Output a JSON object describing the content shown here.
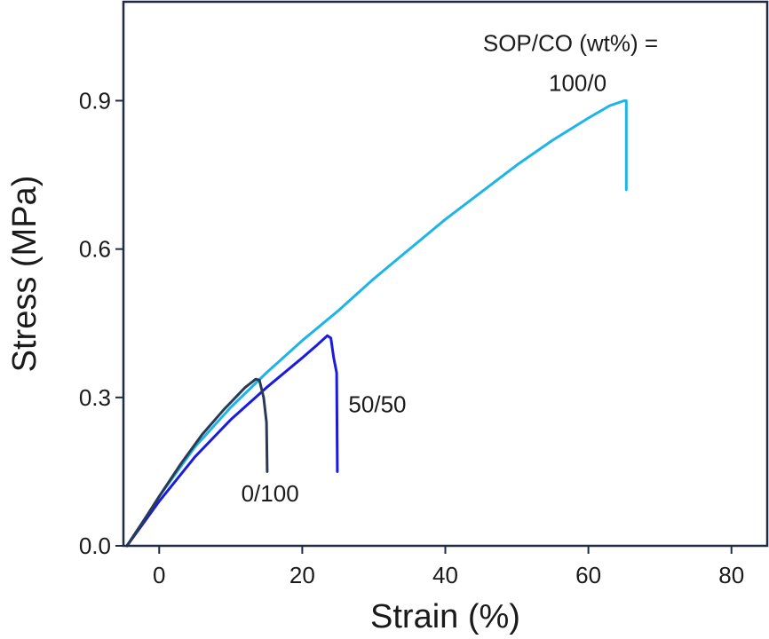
{
  "chart_data": {
    "type": "line",
    "title": "",
    "xlabel": "Strain (%)",
    "ylabel": "Stress (MPa)",
    "xlim": [
      -5,
      85
    ],
    "ylim": [
      0,
      1.1
    ],
    "x_ticks": [
      0,
      20,
      40,
      60,
      80
    ],
    "x_tick_labels": [
      "0",
      "20",
      "40",
      "60",
      "80"
    ],
    "y_ticks": [
      0,
      0.3,
      0.6,
      0.9
    ],
    "y_tick_labels": [
      "0.0",
      "0.3",
      "0.6",
      "0.9"
    ],
    "grid": false,
    "legend": "none",
    "annotations": [
      {
        "text": "SOP/CO (wt%) =",
        "x": 57.5,
        "y": 1.0
      },
      {
        "text": "100/0",
        "x": 58.5,
        "y": 0.92
      },
      {
        "text": "50/50",
        "x": 30.5,
        "y": 0.27
      },
      {
        "text": "0/100",
        "x": 15.5,
        "y": 0.09
      }
    ],
    "series": [
      {
        "label": "100/0",
        "color": "#1EB4E8",
        "x": [
          -4.5,
          -2,
          0,
          5,
          10,
          15,
          20,
          25,
          30,
          35,
          40,
          45,
          50,
          55,
          60,
          63,
          65,
          65.3,
          65.3
        ],
        "y": [
          0,
          0.055,
          0.1,
          0.2,
          0.28,
          0.35,
          0.415,
          0.475,
          0.54,
          0.6,
          0.66,
          0.715,
          0.77,
          0.82,
          0.865,
          0.89,
          0.9,
          0.9,
          0.72
        ]
      },
      {
        "label": "50/50",
        "color": "#1A1AE0",
        "x": [
          -4.5,
          -2,
          0,
          5,
          10,
          15,
          20,
          22,
          23.5,
          24,
          24.4,
          24.8,
          24.9
        ],
        "y": [
          0,
          0.05,
          0.09,
          0.18,
          0.255,
          0.32,
          0.38,
          0.405,
          0.425,
          0.42,
          0.38,
          0.35,
          0.15
        ]
      },
      {
        "label": "0/100",
        "color": "#2A3A55",
        "x": [
          -4.5,
          -2,
          0,
          3,
          6,
          9,
          12,
          13.5,
          14,
          14.6,
          15,
          15.1
        ],
        "y": [
          0,
          0.055,
          0.1,
          0.165,
          0.225,
          0.275,
          0.32,
          0.337,
          0.335,
          0.3,
          0.25,
          0.15
        ]
      }
    ]
  }
}
